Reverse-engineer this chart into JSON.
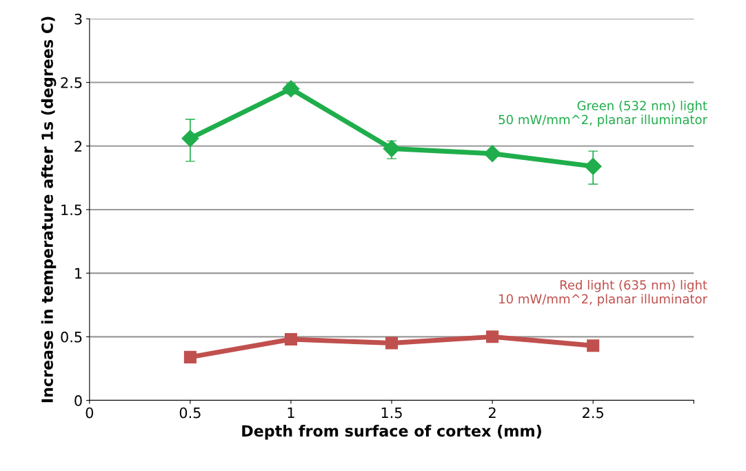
{
  "chart_data": {
    "type": "line",
    "xlabel": "Depth from surface of cortex (mm)",
    "ylabel": "Increase in temperature after 1s (degrees C)",
    "x": [
      0.5,
      1,
      1.5,
      2,
      2.5
    ],
    "series": [
      {
        "name": "Green (532 nm) light\n50 mW/mm^2, planar illuminator",
        "color": "#1fae4b",
        "marker": "diamond",
        "values": [
          2.06,
          2.45,
          1.98,
          1.94,
          1.84
        ],
        "errors": [
          [
            1.88,
            2.21
          ],
          0.04,
          [
            1.9,
            2.04
          ],
          null,
          [
            1.7,
            1.96
          ]
        ]
      },
      {
        "name": "Red light (635 nm) light\n10 mW/mm^2, planar illuminator",
        "color": "#c0504d",
        "marker": "square",
        "values": [
          0.34,
          0.48,
          0.45,
          0.5,
          0.43
        ]
      }
    ],
    "xlim": [
      0,
      3
    ],
    "xticks": [
      0,
      0.5,
      1,
      1.5,
      2,
      2.5,
      {
        "value": 3,
        "label": null
      }
    ],
    "ylim": [
      0,
      3
    ],
    "yticks": [
      0,
      0.5,
      1,
      1.5,
      2,
      2.5,
      3
    ],
    "grid": "y"
  }
}
